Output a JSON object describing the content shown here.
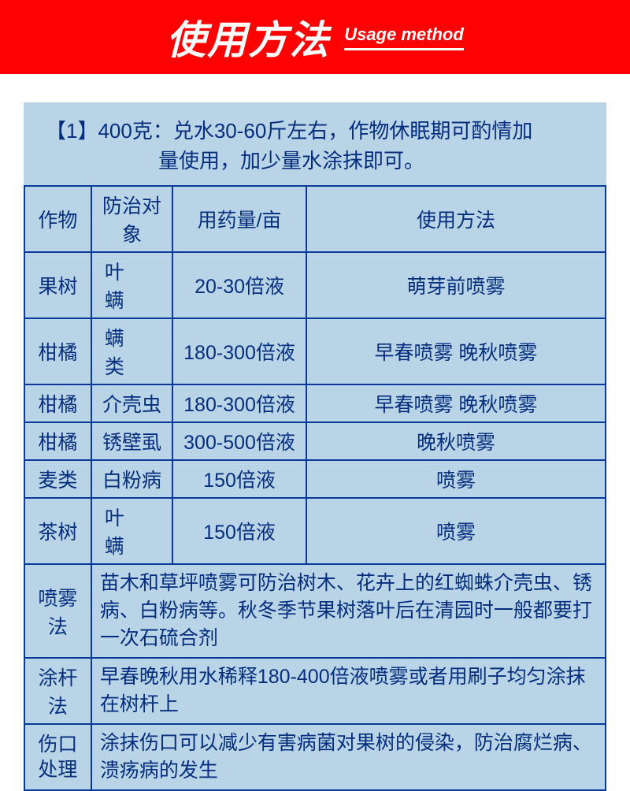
{
  "header": {
    "title_cn": "使用方法",
    "title_en": "Usage method",
    "band_color": "#fe0203",
    "text_color": "#ffffff"
  },
  "panel": {
    "bg_color": "#b8d4e6",
    "text_color": "#052e7f",
    "border_color": "#0a3a99"
  },
  "intro": {
    "line1": "【1】400克：兑水30-60斤左右，作物休眠期可酌情加",
    "line2": "量使用，加少量水涂抹即可。"
  },
  "table": {
    "headers": [
      "作物",
      "防治对象",
      "用药量/亩",
      "使用方法"
    ],
    "rows": [
      {
        "crop": "果树",
        "target": "叶　螨",
        "dose": "20-30倍液",
        "method": "萌芽前喷雾"
      },
      {
        "crop": "柑橘",
        "target": "螨　类",
        "dose": "180-300倍液",
        "method": "早春喷雾 晚秋喷雾"
      },
      {
        "crop": "柑橘",
        "target": "介壳虫",
        "dose": "180-300倍液",
        "method": "早春喷雾 晚秋喷雾"
      },
      {
        "crop": "柑橘",
        "target": "锈壁虱",
        "dose": "300-500倍液",
        "method": "晚秋喷雾"
      },
      {
        "crop": "麦类",
        "target": "白粉病",
        "dose": "150倍液",
        "method": "喷雾"
      },
      {
        "crop": "茶树",
        "target": "叶　螨",
        "dose": "150倍液",
        "method": "喷雾"
      }
    ],
    "methods": [
      {
        "name": "喷雾法",
        "desc": "苗木和草坪喷雾可防治树木、花卉上的红蜘蛛介壳虫、锈病、白粉病等。秋冬季节果树落叶后在清园时一般都要打一次石硫合剂"
      },
      {
        "name": "涂杆法",
        "desc": "早春晚秋用水稀释180-400倍液喷雾或者用刷子均匀涂抹在树杆上"
      },
      {
        "name": "伤口处理",
        "desc": "涂抹伤口可以减少有害病菌对果树的侵染，防治腐烂病、溃疡病的发生"
      }
    ]
  }
}
